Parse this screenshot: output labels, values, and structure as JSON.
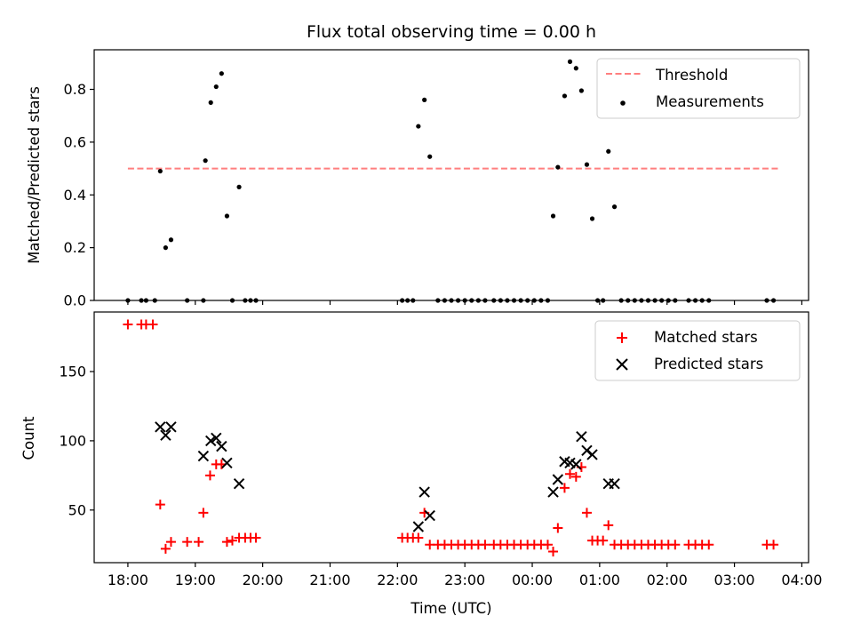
{
  "chart_data": [
    {
      "type": "scatter",
      "title": "Flux total observing time = 0.00 h",
      "xlabel": "",
      "ylabel": "Matched/Predicted stars",
      "xlim": [
        17.5,
        28.1
      ],
      "ylim": [
        0,
        0.95
      ],
      "yticks": [
        0.0,
        0.2,
        0.4,
        0.6,
        0.8
      ],
      "ytick_labels": [
        "0.0",
        "0.2",
        "0.4",
        "0.6",
        "0.8"
      ],
      "xticks": [
        18,
        19,
        20,
        21,
        22,
        23,
        24,
        25,
        26,
        27,
        28
      ],
      "legend": [
        "Threshold",
        "Measurements"
      ],
      "legend_position": "top-right",
      "colors": {
        "threshold": "#ff7f7f",
        "measurements": "#000000"
      },
      "threshold": {
        "name": "Threshold",
        "x": [
          18.0,
          27.67
        ],
        "y": 0.5,
        "style": "dashed"
      },
      "series": [
        {
          "name": "Measurements",
          "x": [
            18.0,
            18.2,
            18.27,
            18.4,
            18.48,
            18.56,
            18.64,
            18.88,
            19.12,
            19.15,
            19.23,
            19.31,
            19.39,
            19.47,
            19.55,
            19.65,
            19.74,
            19.82,
            19.9,
            22.07,
            22.15,
            22.23,
            22.31,
            22.4,
            22.48,
            22.6,
            22.7,
            22.8,
            22.9,
            23.0,
            23.1,
            23.2,
            23.3,
            23.43,
            23.53,
            23.63,
            23.73,
            23.83,
            23.93,
            24.03,
            24.13,
            24.23,
            24.31,
            24.38,
            24.48,
            24.56,
            24.65,
            24.73,
            24.81,
            24.89,
            24.97,
            25.05,
            25.13,
            25.22,
            25.32,
            25.42,
            25.52,
            25.62,
            25.72,
            25.82,
            25.92,
            26.02,
            26.12,
            26.32,
            26.42,
            26.52,
            26.62,
            27.48,
            27.58
          ],
          "y": [
            0.0,
            0.0,
            0.0,
            0.0,
            0.49,
            0.2,
            0.23,
            0.0,
            0.0,
            0.53,
            0.75,
            0.81,
            0.86,
            0.32,
            0.0,
            0.43,
            0.0,
            0.0,
            0.0,
            0.0,
            0.0,
            0.0,
            0.66,
            0.76,
            0.545,
            0.0,
            0.0,
            0.0,
            0.0,
            0.0,
            0.0,
            0.0,
            0.0,
            0.0,
            0.0,
            0.0,
            0.0,
            0.0,
            0.0,
            0.0,
            0.0,
            0.0,
            0.32,
            0.505,
            0.775,
            0.905,
            0.88,
            0.795,
            0.515,
            0.31,
            0.0,
            0.0,
            0.565,
            0.355,
            0.0,
            0.0,
            0.0,
            0.0,
            0.0,
            0.0,
            0.0,
            0.0,
            0.0,
            0.0,
            0.0,
            0.0,
            0.0,
            0.0,
            0.0
          ]
        }
      ]
    },
    {
      "type": "scatter",
      "title": "",
      "xlabel": "Time (UTC)",
      "ylabel": "Count",
      "xlim": [
        17.5,
        28.1
      ],
      "ylim": [
        12,
        193
      ],
      "yticks": [
        50,
        100,
        150
      ],
      "ytick_labels": [
        "50",
        "100",
        "150"
      ],
      "xticks": [
        18,
        19,
        20,
        21,
        22,
        23,
        24,
        25,
        26,
        27,
        28
      ],
      "xtick_labels": [
        "18:00",
        "19:00",
        "20:00",
        "21:00",
        "22:00",
        "23:00",
        "00:00",
        "01:00",
        "02:00",
        "03:00",
        "04:00"
      ],
      "legend": [
        "Matched stars",
        "Predicted stars"
      ],
      "legend_position": "top-right",
      "colors": {
        "matched": "#ff0000",
        "predicted": "#000000"
      },
      "series": [
        {
          "name": "Matched stars",
          "marker": "+",
          "x": [
            18.0,
            18.2,
            18.27,
            18.37,
            18.48,
            18.56,
            18.64,
            18.88,
            19.05,
            19.12,
            19.22,
            19.31,
            19.39,
            19.47,
            19.55,
            19.65,
            19.74,
            19.82,
            19.9,
            22.07,
            22.15,
            22.23,
            22.31,
            22.4,
            22.48,
            22.6,
            22.7,
            22.8,
            22.9,
            23.0,
            23.1,
            23.2,
            23.3,
            23.43,
            23.53,
            23.63,
            23.73,
            23.83,
            23.93,
            24.03,
            24.13,
            24.23,
            24.31,
            24.38,
            24.48,
            24.56,
            24.65,
            24.73,
            24.81,
            24.89,
            24.97,
            25.05,
            25.13,
            25.22,
            25.32,
            25.42,
            25.52,
            25.62,
            25.72,
            25.82,
            25.92,
            26.02,
            26.12,
            26.32,
            26.42,
            26.52,
            26.62,
            27.48,
            27.58
          ],
          "y": [
            184,
            184,
            184,
            184,
            54,
            22,
            27,
            27,
            27,
            48,
            75,
            83,
            83,
            27,
            28,
            30,
            30,
            30,
            30,
            30,
            30,
            30,
            30,
            48,
            25,
            25,
            25,
            25,
            25,
            25,
            25,
            25,
            25,
            25,
            25,
            25,
            25,
            25,
            25,
            25,
            25,
            25,
            20,
            37,
            66,
            76,
            74,
            81,
            48,
            28,
            28,
            28,
            39,
            25,
            25,
            25,
            25,
            25,
            25,
            25,
            25,
            25,
            25,
            25,
            25,
            25,
            25,
            25,
            25
          ]
        },
        {
          "name": "Predicted stars",
          "marker": "x",
          "x": [
            18.48,
            18.56,
            18.64,
            19.12,
            19.23,
            19.31,
            19.39,
            19.47,
            19.65,
            22.31,
            22.4,
            22.48,
            24.31,
            24.38,
            24.48,
            24.56,
            24.65,
            24.73,
            24.81,
            24.89,
            25.13,
            25.22
          ],
          "y": [
            110,
            104,
            110,
            89,
            100,
            102,
            96,
            84,
            69,
            38,
            63,
            46,
            63,
            72,
            85,
            84,
            83,
            103,
            93,
            90,
            69,
            69
          ]
        }
      ]
    }
  ]
}
